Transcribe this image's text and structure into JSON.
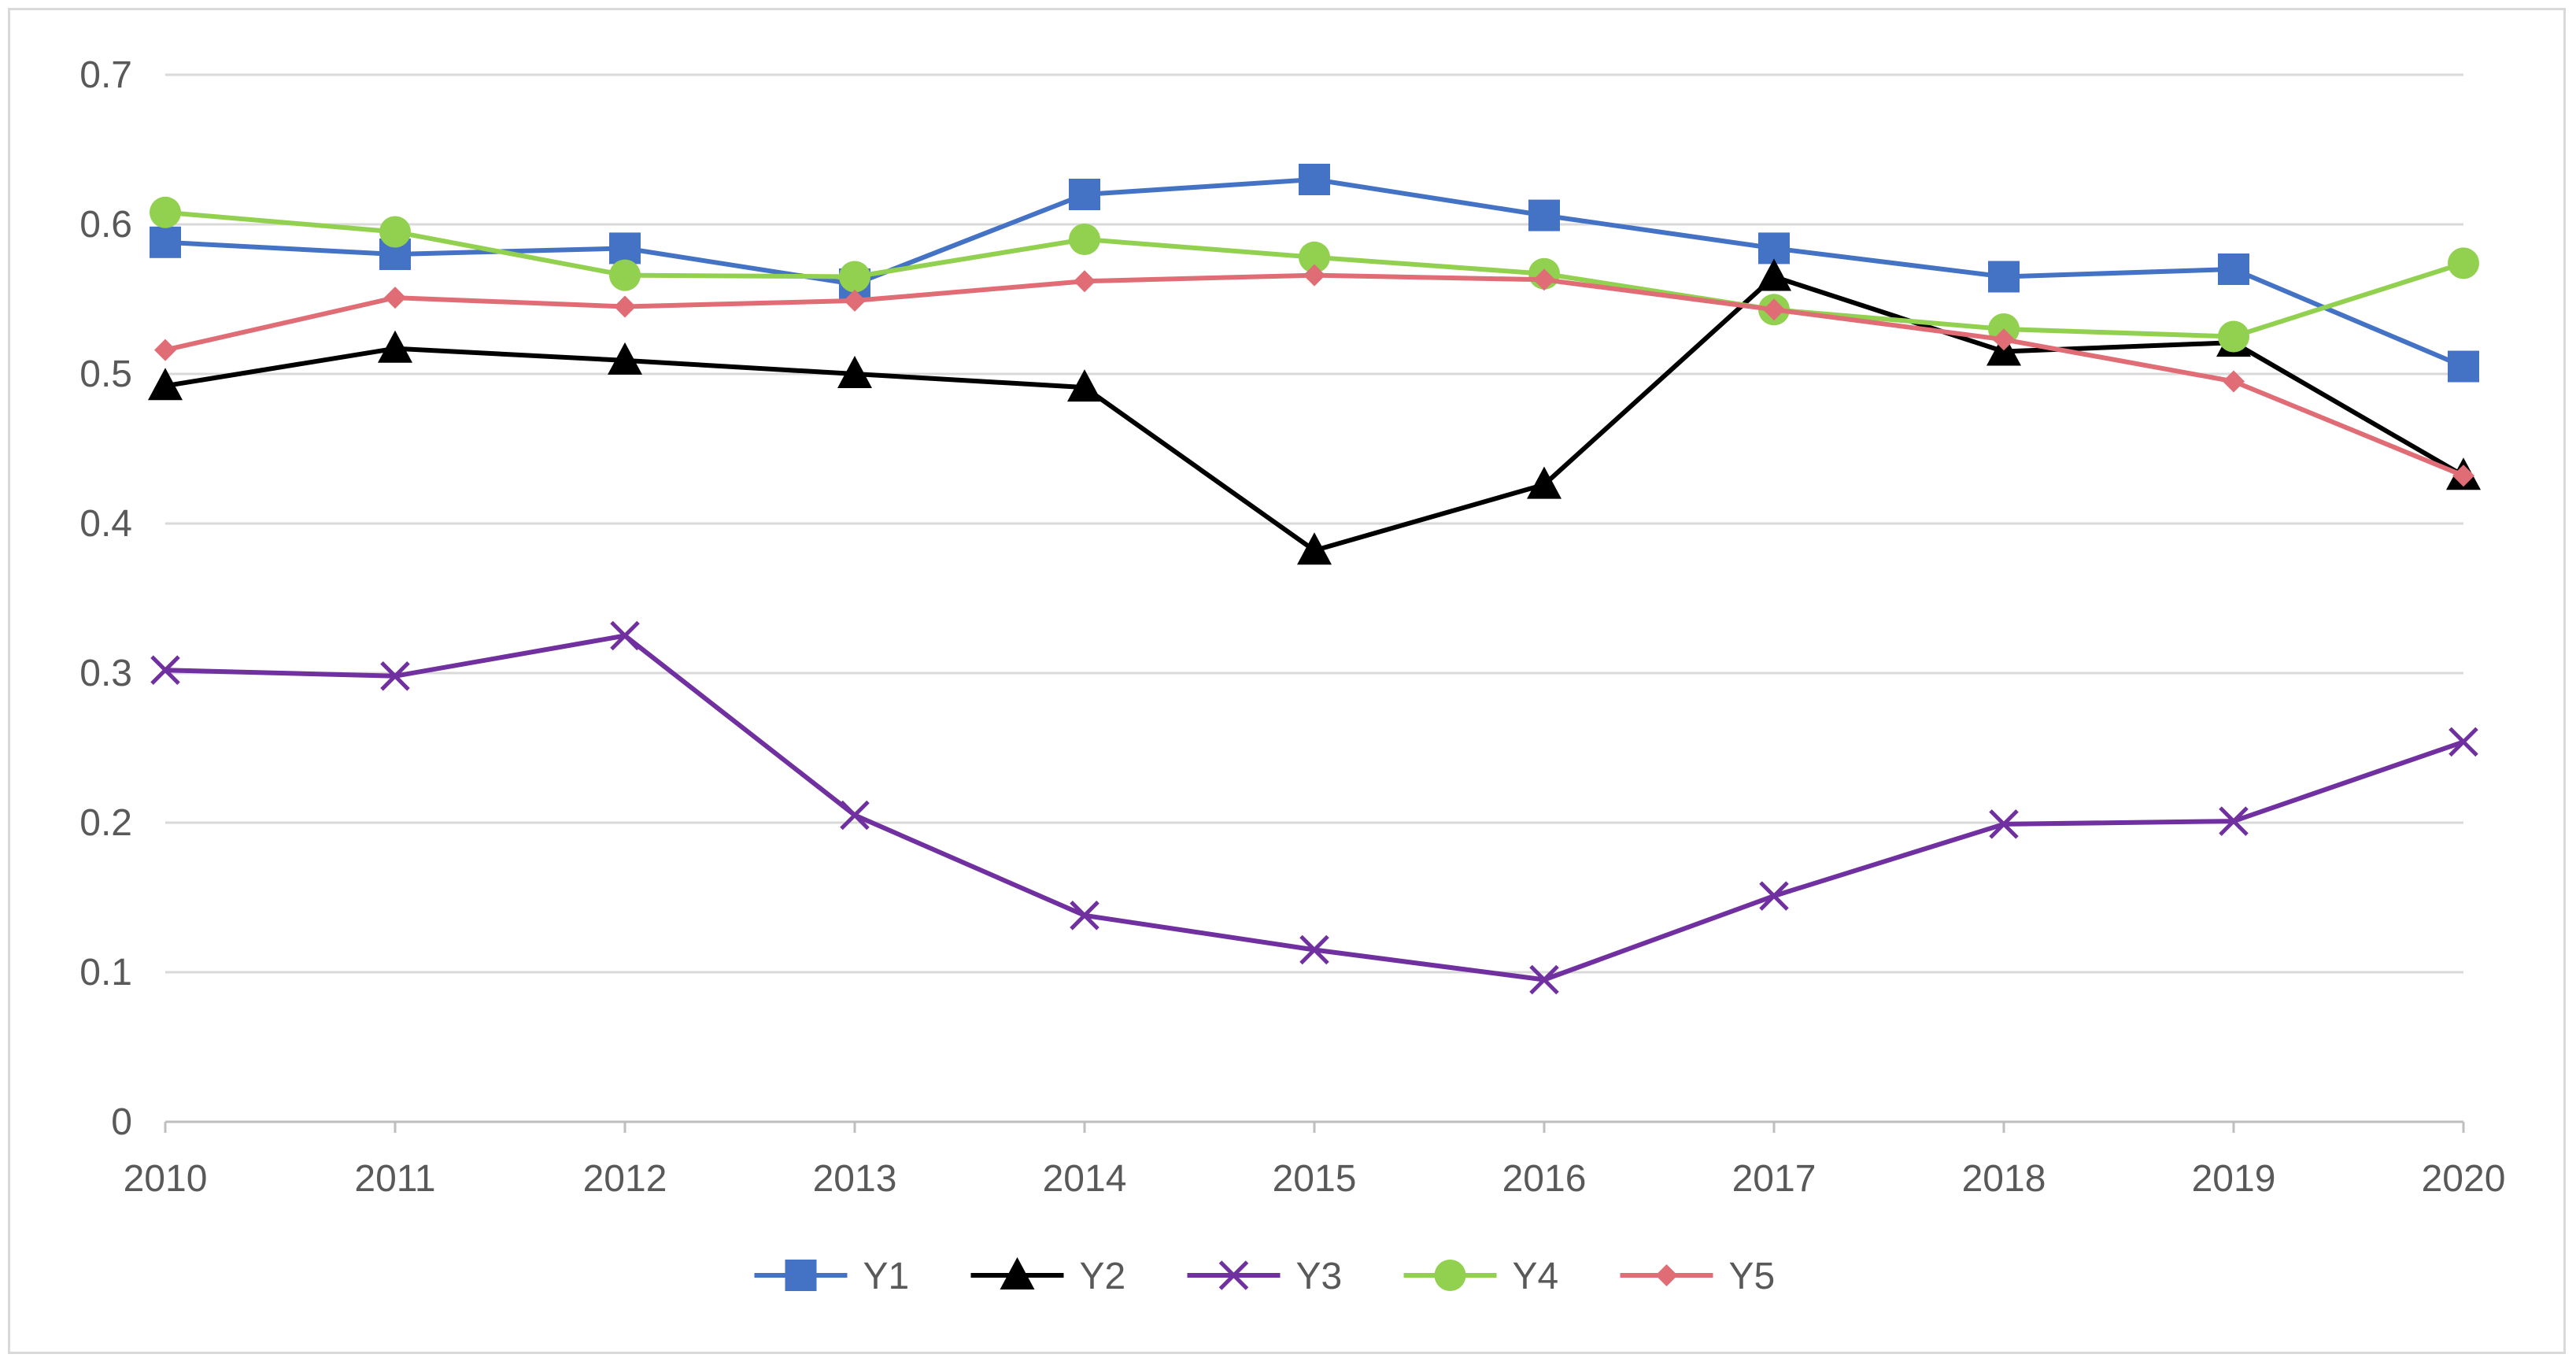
{
  "chart_data": {
    "type": "line",
    "title": "",
    "xlabel": "",
    "ylabel": "",
    "categories": [
      "2010",
      "2011",
      "2012",
      "2013",
      "2014",
      "2015",
      "2016",
      "2017",
      "2018",
      "2019",
      "2020"
    ],
    "ylim": [
      0,
      0.7
    ],
    "yticks": [
      0,
      0.1,
      0.2,
      0.3,
      0.4,
      0.5,
      0.6,
      0.7
    ],
    "ytick_labels": [
      "0",
      "0.1",
      "0.2",
      "0.3",
      "0.4",
      "0.5",
      "0.6",
      "0.7"
    ],
    "grid": true,
    "legend_position": "bottom-center",
    "series": [
      {
        "name": "Y1",
        "color": "#4472C4",
        "marker": "square",
        "values": [
          0.588,
          0.58,
          0.584,
          0.56,
          0.62,
          0.63,
          0.606,
          0.584,
          0.565,
          0.57,
          0.505
        ]
      },
      {
        "name": "Y2",
        "color": "#000000",
        "marker": "triangle",
        "values": [
          0.492,
          0.517,
          0.509,
          0.5,
          0.491,
          0.382,
          0.426,
          0.565,
          0.515,
          0.521,
          0.432
        ]
      },
      {
        "name": "Y3",
        "color": "#7030A0",
        "marker": "x",
        "values": [
          0.302,
          0.298,
          0.325,
          0.205,
          0.138,
          0.115,
          0.095,
          0.151,
          0.199,
          0.201,
          0.254
        ]
      },
      {
        "name": "Y4",
        "color": "#92D050",
        "marker": "circle",
        "values": [
          0.608,
          0.595,
          0.566,
          0.565,
          0.59,
          0.578,
          0.567,
          0.543,
          0.53,
          0.525,
          0.574
        ]
      },
      {
        "name": "Y5",
        "color": "#E06C75",
        "marker": "diamond",
        "values": [
          0.516,
          0.551,
          0.545,
          0.549,
          0.562,
          0.566,
          0.563,
          0.543,
          0.523,
          0.495,
          0.432
        ]
      }
    ]
  }
}
